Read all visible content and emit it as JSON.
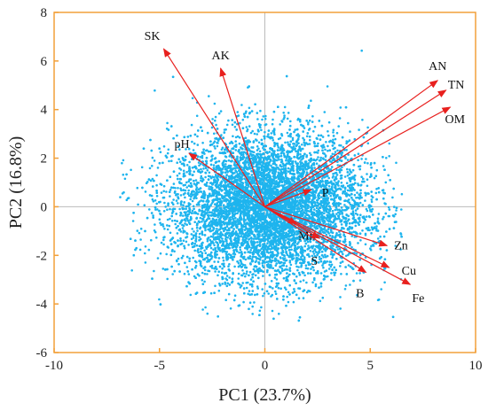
{
  "chart_data": {
    "type": "scatter",
    "title": "",
    "xlabel": "PC1 (23.7%)",
    "ylabel": "PC2 (16.8%)",
    "xlim": [
      -10,
      10
    ],
    "ylim": [
      -6,
      8
    ],
    "xticks": [
      "-10",
      "-5",
      "0",
      "5",
      "10"
    ],
    "yticks": [
      "-6",
      "-4",
      "-2",
      "0",
      "2",
      "4",
      "6",
      "8"
    ],
    "grid": false,
    "zero_lines": true,
    "colors": {
      "frame": "#F2A03A",
      "points": "#1EB4EE",
      "vectors": "#E8201E",
      "zero_lines": "#BBBBBB"
    },
    "point_cloud": {
      "approx_count": 9000,
      "center": [
        0.2,
        0.0
      ],
      "spread_x": 2.3,
      "spread_y": 1.5,
      "x_extent": [
        -6.9,
        6.5
      ],
      "y_extent": [
        -4.7,
        6.6
      ]
    },
    "loadings": [
      {
        "label": "SK",
        "x": -4.8,
        "y": 6.5
      },
      {
        "label": "AK",
        "x": -2.1,
        "y": 5.7
      },
      {
        "label": "pH",
        "x": -3.6,
        "y": 2.2
      },
      {
        "label": "AN",
        "x": 8.2,
        "y": 5.2
      },
      {
        "label": "TN",
        "x": 8.6,
        "y": 4.8
      },
      {
        "label": "OM",
        "x": 8.8,
        "y": 4.1
      },
      {
        "label": "P",
        "x": 2.2,
        "y": 0.7
      },
      {
        "label": "Mn",
        "x": 1.5,
        "y": -0.7
      },
      {
        "label": "S",
        "x": 2.6,
        "y": -1.3
      },
      {
        "label": "Zn",
        "x": 5.8,
        "y": -1.6
      },
      {
        "label": "Cu",
        "x": 5.9,
        "y": -2.5
      },
      {
        "label": "B",
        "x": 4.8,
        "y": -2.7
      },
      {
        "label": "Fe",
        "x": 6.9,
        "y": -3.2
      }
    ]
  }
}
